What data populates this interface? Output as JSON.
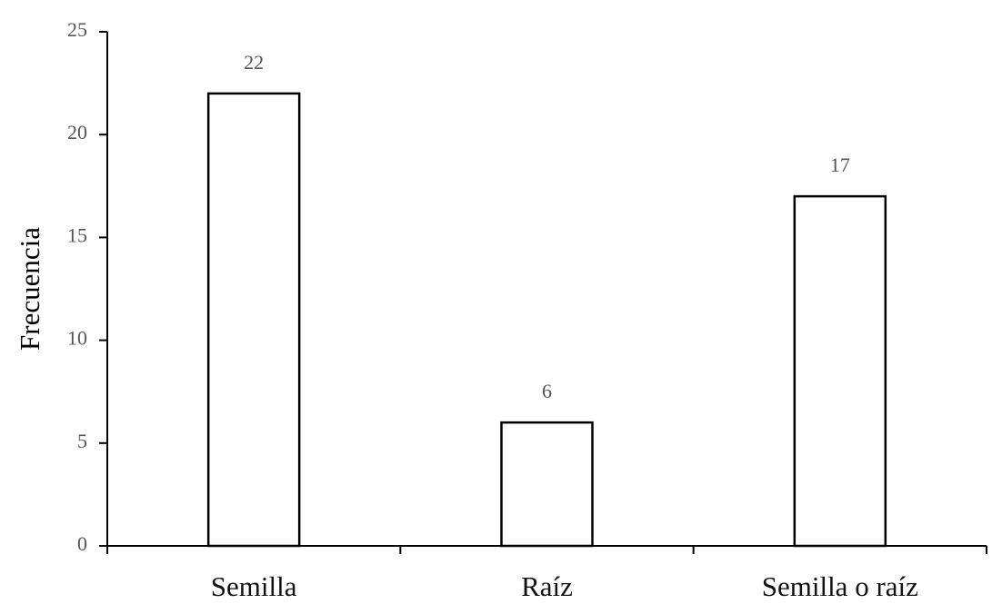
{
  "chart_data": {
    "type": "bar",
    "ylabel": "Frecuencia",
    "categories": [
      "Semilla",
      "Raíz",
      "Semilla o raíz"
    ],
    "values": [
      22,
      6,
      17
    ],
    "color": "#ffffff",
    "edgecolor": "#000000",
    "ylim": [
      0,
      25
    ],
    "yticks": [
      0,
      5,
      10,
      15,
      20,
      25
    ],
    "grid": false
  }
}
